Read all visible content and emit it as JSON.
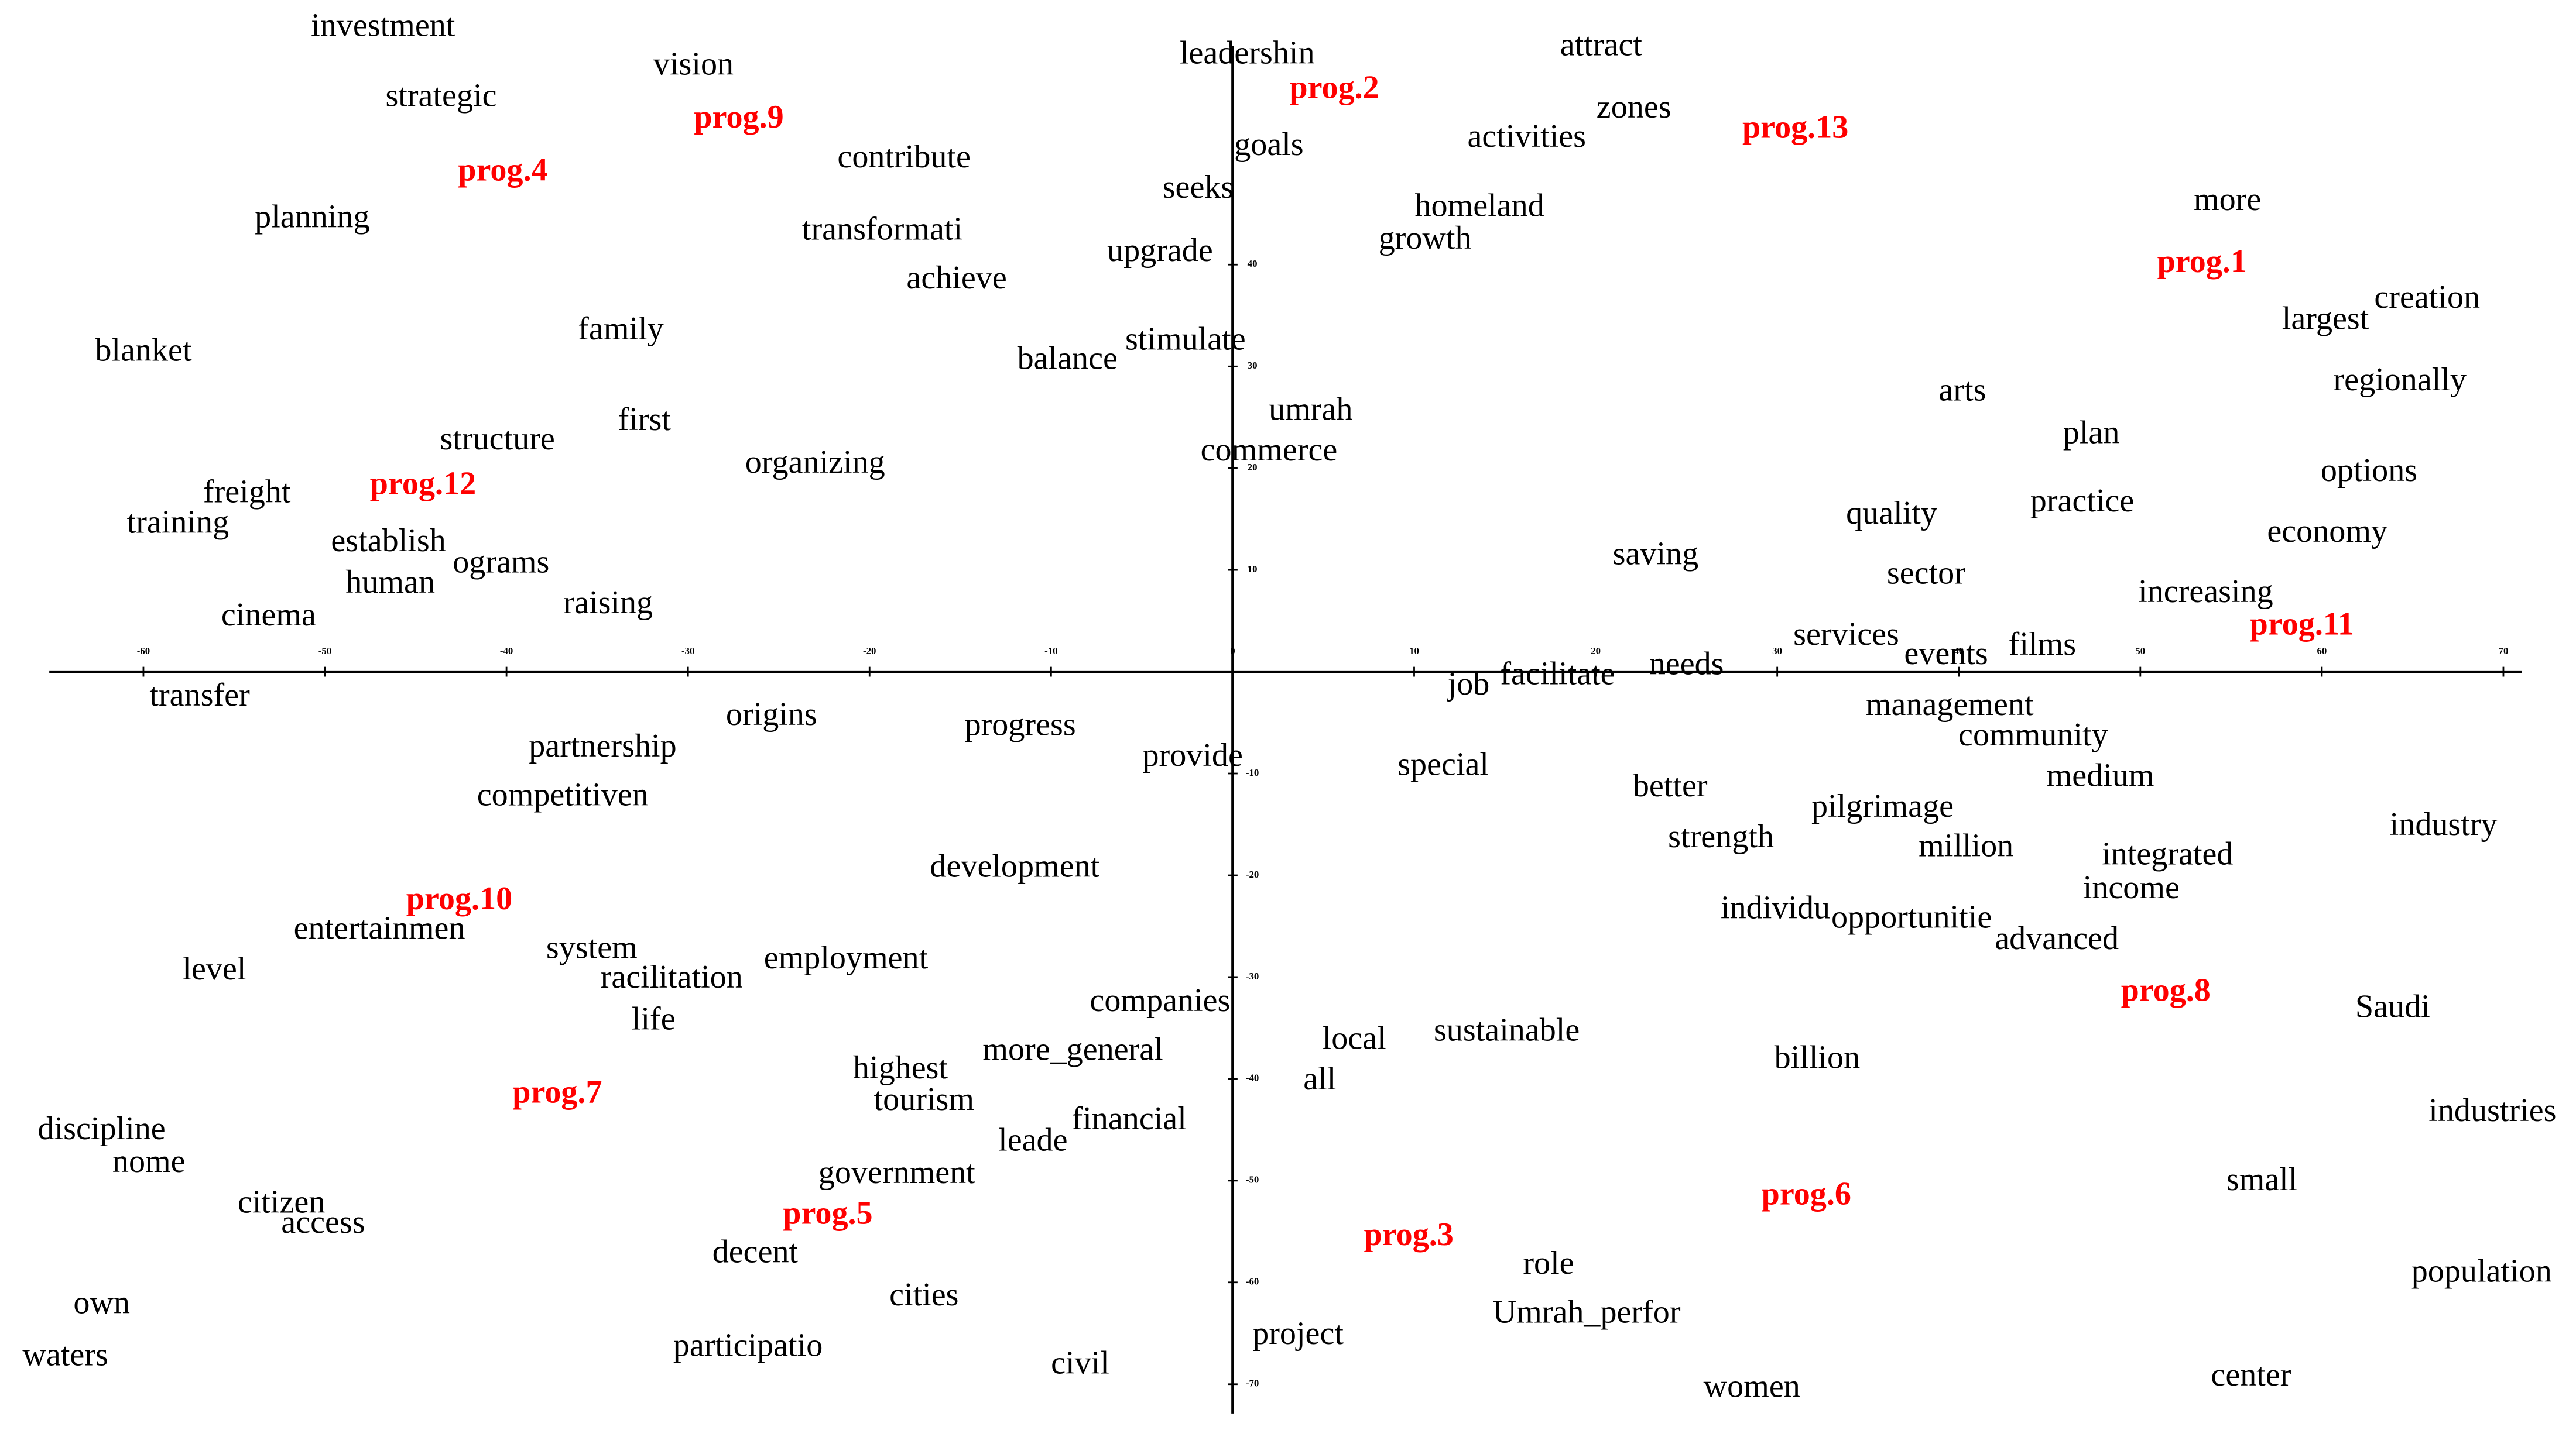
{
  "chart_data": {
    "type": "scatter",
    "xlim": [
      -67.9,
      74
    ],
    "ylim": [
      -74.5,
      66
    ],
    "xticks": [
      -60,
      -50,
      -40,
      -30,
      -20,
      -10,
      0,
      10,
      20,
      30,
      40,
      50,
      60,
      70
    ],
    "yticks": [
      -70,
      -60,
      -50,
      -40,
      -30,
      -20,
      -10,
      10,
      20,
      30,
      40
    ],
    "series": [
      {
        "color": "#000000",
        "bold": false,
        "labels": [
          "investment",
          "strategic",
          "vision",
          "contribute",
          "planning",
          "transformati",
          "achieve",
          "blanket",
          "family",
          "balance",
          "stimulate",
          "first",
          "structure",
          "organizing",
          "freight",
          "training",
          "establish",
          "ograms",
          "human",
          "raising",
          "cinema",
          "transfer",
          "leadershin",
          "goals",
          "seeks",
          "upgrade",
          "umrah",
          "commerce",
          "attract",
          "zones",
          "activities",
          "homeland",
          "growth",
          "more",
          "creation",
          "largest",
          "regionally",
          "arts",
          "plan",
          "options",
          "practice",
          "economy",
          "quality",
          "saving",
          "sector",
          "increasing",
          "services",
          "events",
          "films",
          "job",
          "facilitate",
          "needs",
          "management",
          "community",
          "medium",
          "industry",
          "origins",
          "progress",
          "partnership",
          "competitiven",
          "provide",
          "special",
          "better",
          "pilgrimage",
          "strength",
          "million",
          "integrated",
          "income",
          "development",
          "entertainmen",
          "level",
          "system",
          "racilitation",
          "employment",
          "life",
          "individu",
          "opportunitie",
          "advanced",
          "companies",
          "local",
          "sustainable",
          "all",
          "billion",
          "Saudi",
          "highest",
          "more_general",
          "tourism",
          "leade",
          "financial",
          "industries",
          "discipline",
          "nome",
          "government",
          "small",
          "citizen",
          "access",
          "decent",
          "role",
          "population",
          "own",
          "cities",
          "Umrah_perfor",
          "project",
          "waters",
          "participatio",
          "civil",
          "women",
          "center"
        ],
        "x": [
          -46.8,
          -43.6,
          -29.7,
          -18.1,
          -50.7,
          -19.3,
          -15.2,
          -60,
          -33.7,
          -9.1,
          -2.6,
          -32.4,
          -40.5,
          -23,
          -54.3,
          -58.1,
          -46.5,
          -40.3,
          -46.4,
          -34.4,
          -53.1,
          -56.9,
          0.8,
          2,
          -1.9,
          -4,
          4.3,
          2,
          20.3,
          22.1,
          16.2,
          13.6,
          10.6,
          54.8,
          65.8,
          60.2,
          64.3,
          40.2,
          47.3,
          62.6,
          46.8,
          60.3,
          36.3,
          23.3,
          38.2,
          53.6,
          33.8,
          39.3,
          44.6,
          13,
          17.9,
          25,
          39.5,
          44.1,
          47.8,
          66.7,
          -25.4,
          -11.7,
          -34.7,
          -36.9,
          -2.2,
          11.6,
          24.1,
          35.8,
          26.9,
          40.4,
          51.5,
          49.5,
          -12,
          -47,
          -56.1,
          -35.3,
          -30.9,
          -21.3,
          -31.9,
          29.9,
          37.4,
          45.4,
          -4,
          6.7,
          15.1,
          4.8,
          32.2,
          63.9,
          -18.3,
          -8.8,
          -17,
          -11,
          -5.7,
          69.4,
          -62.3,
          -59.7,
          -18.5,
          56.7,
          -52.4,
          -50.1,
          -26.3,
          17.4,
          68.8,
          -62.3,
          -17,
          19.5,
          3.6,
          -64.3,
          -26.7,
          -8.4,
          28.6,
          56.1
        ],
        "y": [
          63.2,
          56.3,
          59.4,
          50.3,
          44.4,
          43.2,
          38.4,
          31.3,
          33.4,
          30.5,
          32.4,
          24.5,
          22.6,
          20.3,
          17.4,
          14.4,
          12.6,
          10.5,
          8.5,
          6.5,
          5.3,
          -2.6,
          60.5,
          51.5,
          47.3,
          41.1,
          25.5,
          21.5,
          61.3,
          55.2,
          52.3,
          45.5,
          42.3,
          46.1,
          36.5,
          34.4,
          28.4,
          27.4,
          23.2,
          19.5,
          16.5,
          13.5,
          15.3,
          11.3,
          9.4,
          7.6,
          3.4,
          1.5,
          2.4,
          -1.5,
          -0.5,
          0.5,
          -3.5,
          -6.5,
          -10.5,
          -15.3,
          -4.5,
          -5.5,
          -7.6,
          -12.4,
          -8.5,
          -9.4,
          -11.5,
          -13.5,
          -16.5,
          -17.4,
          -18.2,
          -21.5,
          -19.4,
          -25.5,
          -29.5,
          -27.4,
          -30.3,
          -28.4,
          -34.4,
          -23.5,
          -24.4,
          -26.5,
          -32.6,
          -36.3,
          -35.5,
          -40.3,
          -38.2,
          -33.2,
          -39.2,
          -37.4,
          -42.3,
          -46.3,
          -44.2,
          -43.4,
          -45.2,
          -48.4,
          -49.5,
          -50.2,
          -52.4,
          -54.4,
          -57.3,
          -58.4,
          -59.2,
          -62.3,
          -61.5,
          -63.2,
          -65.3,
          -67.4,
          -66.5,
          -68.2,
          -70.5,
          -69.4
        ]
      },
      {
        "color": "#ff0000",
        "bold": true,
        "labels": [
          "prog.2",
          "prog.9",
          "prog.4",
          "prog.13",
          "prog.1",
          "prog.12",
          "prog.11",
          "prog.10",
          "prog.8",
          "prog.7",
          "prog.6",
          "prog.5",
          "prog.3"
        ],
        "x": [
          5.6,
          -27.2,
          -40.2,
          31,
          53.4,
          -44.6,
          58.9,
          -42.6,
          51.4,
          -37.2,
          31.6,
          -22.3,
          9.7
        ],
        "y": [
          57.1,
          54.2,
          49,
          53.2,
          40,
          18.2,
          4.4,
          -22.6,
          -31.6,
          -41.6,
          -51.6,
          -53.5,
          -55.6
        ]
      }
    ]
  }
}
